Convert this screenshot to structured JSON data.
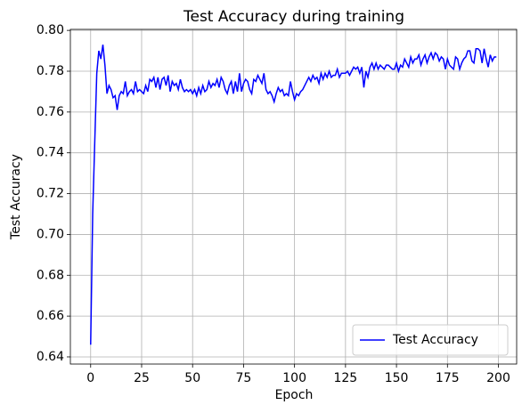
{
  "chart_data": {
    "type": "line",
    "title": "Test Accuracy during training",
    "xlabel": "Epoch",
    "ylabel": "Test Accuracy",
    "x": [
      0,
      1,
      2,
      3,
      4,
      5,
      6,
      7,
      8,
      9,
      10,
      11,
      12,
      13,
      14,
      15,
      16,
      17,
      18,
      19,
      20,
      21,
      22,
      23,
      24,
      25,
      26,
      27,
      28,
      29,
      30,
      31,
      32,
      33,
      34,
      35,
      36,
      37,
      38,
      39,
      40,
      41,
      42,
      43,
      44,
      45,
      46,
      47,
      48,
      49,
      50,
      51,
      52,
      53,
      54,
      55,
      56,
      57,
      58,
      59,
      60,
      61,
      62,
      63,
      64,
      65,
      66,
      67,
      68,
      69,
      70,
      71,
      72,
      73,
      74,
      75,
      76,
      77,
      78,
      79,
      80,
      81,
      82,
      83,
      84,
      85,
      86,
      87,
      88,
      89,
      90,
      91,
      92,
      93,
      94,
      95,
      96,
      97,
      98,
      99,
      100,
      101,
      102,
      103,
      104,
      105,
      106,
      107,
      108,
      109,
      110,
      111,
      112,
      113,
      114,
      115,
      116,
      117,
      118,
      119,
      120,
      121,
      122,
      123,
      124,
      125,
      126,
      127,
      128,
      129,
      130,
      131,
      132,
      133,
      134,
      135,
      136,
      137,
      138,
      139,
      140,
      141,
      142,
      143,
      144,
      145,
      146,
      147,
      148,
      149,
      150,
      151,
      152,
      153,
      154,
      155,
      156,
      157,
      158,
      159,
      160,
      161,
      162,
      163,
      164,
      165,
      166,
      167,
      168,
      169,
      170,
      171,
      172,
      173,
      174,
      175,
      176,
      177,
      178,
      179,
      180,
      181,
      182,
      183,
      184,
      185,
      186,
      187,
      188,
      189,
      190,
      191,
      192,
      193,
      194,
      195,
      196,
      197,
      198,
      199
    ],
    "series": [
      {
        "name": "Test Accuracy",
        "color": "#0000ff",
        "values": [
          0.646,
          0.71,
          0.745,
          0.779,
          0.79,
          0.786,
          0.793,
          0.783,
          0.769,
          0.773,
          0.771,
          0.767,
          0.768,
          0.761,
          0.768,
          0.77,
          0.769,
          0.775,
          0.768,
          0.77,
          0.771,
          0.769,
          0.775,
          0.77,
          0.771,
          0.77,
          0.769,
          0.773,
          0.77,
          0.776,
          0.775,
          0.777,
          0.772,
          0.777,
          0.771,
          0.776,
          0.777,
          0.773,
          0.778,
          0.77,
          0.775,
          0.773,
          0.774,
          0.771,
          0.776,
          0.772,
          0.77,
          0.771,
          0.77,
          0.771,
          0.769,
          0.771,
          0.768,
          0.772,
          0.769,
          0.773,
          0.77,
          0.771,
          0.775,
          0.772,
          0.774,
          0.773,
          0.776,
          0.772,
          0.777,
          0.775,
          0.771,
          0.769,
          0.773,
          0.775,
          0.769,
          0.775,
          0.77,
          0.779,
          0.77,
          0.774,
          0.776,
          0.775,
          0.771,
          0.769,
          0.776,
          0.775,
          0.778,
          0.776,
          0.774,
          0.779,
          0.771,
          0.769,
          0.77,
          0.768,
          0.765,
          0.769,
          0.772,
          0.77,
          0.771,
          0.768,
          0.769,
          0.768,
          0.775,
          0.77,
          0.766,
          0.769,
          0.768,
          0.77,
          0.771,
          0.773,
          0.775,
          0.777,
          0.775,
          0.778,
          0.776,
          0.777,
          0.774,
          0.779,
          0.776,
          0.779,
          0.777,
          0.78,
          0.777,
          0.778,
          0.778,
          0.781,
          0.777,
          0.779,
          0.779,
          0.779,
          0.78,
          0.778,
          0.78,
          0.782,
          0.781,
          0.782,
          0.779,
          0.782,
          0.772,
          0.78,
          0.777,
          0.782,
          0.784,
          0.781,
          0.784,
          0.781,
          0.783,
          0.782,
          0.781,
          0.783,
          0.783,
          0.782,
          0.781,
          0.781,
          0.784,
          0.78,
          0.783,
          0.782,
          0.786,
          0.784,
          0.782,
          0.787,
          0.784,
          0.786,
          0.786,
          0.788,
          0.783,
          0.786,
          0.788,
          0.784,
          0.787,
          0.789,
          0.786,
          0.789,
          0.788,
          0.785,
          0.787,
          0.786,
          0.781,
          0.786,
          0.783,
          0.782,
          0.781,
          0.787,
          0.786,
          0.781,
          0.784,
          0.786,
          0.787,
          0.79,
          0.79,
          0.785,
          0.784,
          0.791,
          0.791,
          0.79,
          0.784,
          0.791,
          0.786,
          0.782,
          0.788,
          0.785,
          0.787,
          0.787
        ]
      }
    ],
    "xlim": [
      -9.95,
      208.95
    ],
    "xticks": [
      0,
      25,
      50,
      75,
      100,
      125,
      150,
      175,
      200
    ],
    "ylim": [
      0.6365,
      0.8005
    ],
    "yticks": [
      0.64,
      0.66,
      0.68,
      {
        "value": 0.7,
        "label": "0.70"
      },
      0.72,
      0.74,
      0.76,
      0.78,
      {
        "value": 0.8,
        "label": "0.80"
      }
    ],
    "grid": true,
    "legend": "lower right"
  }
}
